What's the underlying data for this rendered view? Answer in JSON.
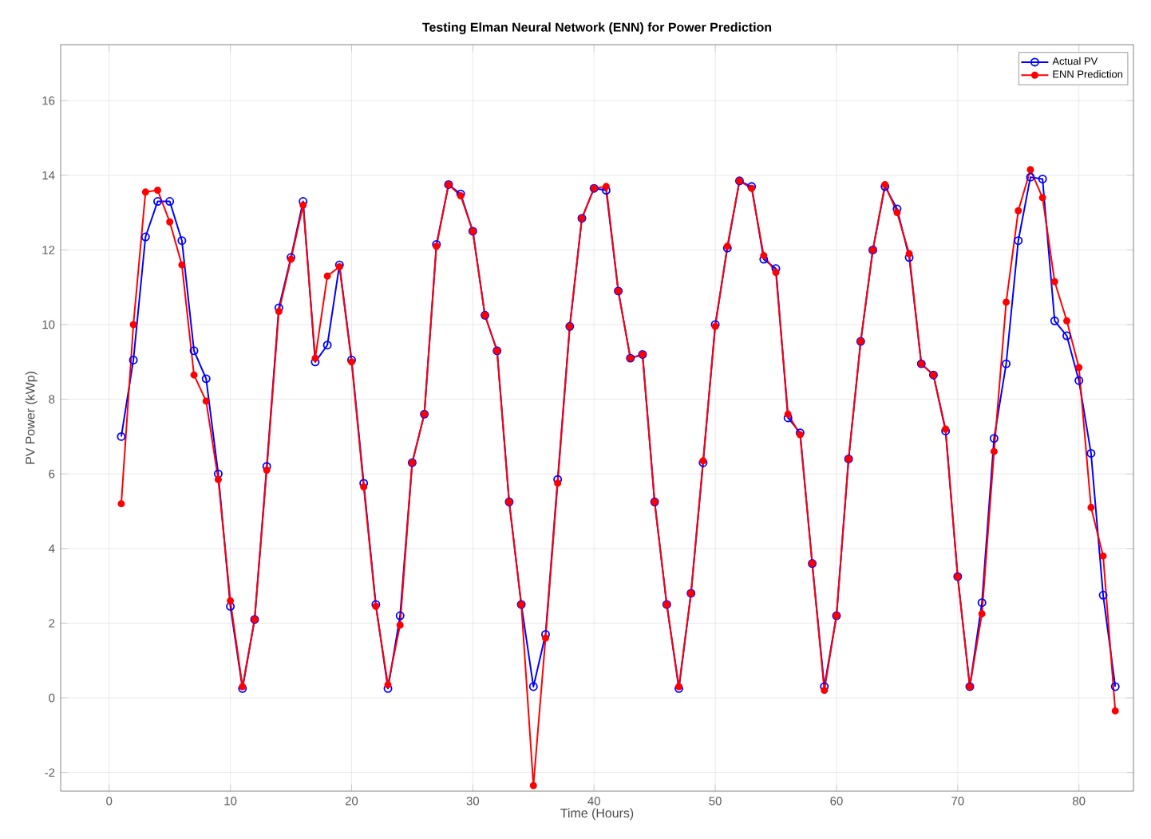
{
  "chart_data": {
    "type": "line",
    "title": "Testing Elman Neural Network (ENN) for Power Prediction",
    "xlabel": "Time (Hours)",
    "ylabel": "PV Power (kWp)",
    "x": [
      1,
      2,
      3,
      4,
      5,
      6,
      7,
      8,
      9,
      10,
      11,
      12,
      13,
      14,
      15,
      16,
      17,
      18,
      19,
      20,
      21,
      22,
      23,
      24,
      25,
      26,
      27,
      28,
      29,
      30,
      31,
      32,
      33,
      34,
      35,
      36,
      37,
      38,
      39,
      40,
      41,
      42,
      43,
      44,
      45,
      46,
      47,
      48,
      49,
      50,
      51,
      52,
      53,
      54,
      55,
      56,
      57,
      58,
      59,
      60,
      61,
      62,
      63,
      64,
      65,
      66,
      67,
      68,
      69,
      70,
      71,
      72,
      73,
      74,
      75,
      76,
      77,
      78,
      79,
      80,
      81,
      82,
      83
    ],
    "series": [
      {
        "name": "Actual PV",
        "color": "#0000ff",
        "marker": "circle",
        "values": [
          7.0,
          9.05,
          12.35,
          13.3,
          13.3,
          12.25,
          9.3,
          8.55,
          6.0,
          2.45,
          0.25,
          2.1,
          6.2,
          10.45,
          11.8,
          13.3,
          9.0,
          9.45,
          11.6,
          9.05,
          5.75,
          2.5,
          0.25,
          2.2,
          6.3,
          7.6,
          12.15,
          13.75,
          13.5,
          12.5,
          10.25,
          9.3,
          5.25,
          2.5,
          0.3,
          1.7,
          5.85,
          9.95,
          12.85,
          13.65,
          13.6,
          10.9,
          9.1,
          9.2,
          5.25,
          2.5,
          0.25,
          2.8,
          6.3,
          10.0,
          12.05,
          13.85,
          13.7,
          11.75,
          11.5,
          7.5,
          7.1,
          3.6,
          0.3,
          2.2,
          6.4,
          9.55,
          12.0,
          13.7,
          13.1,
          11.8,
          8.95,
          8.65,
          7.15,
          3.25,
          0.3,
          2.55,
          6.95,
          8.95,
          12.25,
          13.95,
          13.9,
          10.1,
          9.7,
          8.5,
          6.55,
          2.75,
          0.3
        ]
      },
      {
        "name": "ENN Prediction",
        "color": "#ff0000",
        "marker": "filled circle",
        "values": [
          5.2,
          10.0,
          13.55,
          13.6,
          12.75,
          11.6,
          8.65,
          7.95,
          5.85,
          2.6,
          0.3,
          2.1,
          6.1,
          10.35,
          11.75,
          13.2,
          9.1,
          11.3,
          11.55,
          9.0,
          5.65,
          2.45,
          0.35,
          1.95,
          6.3,
          7.6,
          12.1,
          13.75,
          13.45,
          12.5,
          10.25,
          9.3,
          5.25,
          2.5,
          -2.35,
          1.6,
          5.75,
          9.95,
          12.85,
          13.65,
          13.7,
          10.9,
          9.1,
          9.2,
          5.25,
          2.5,
          0.3,
          2.8,
          6.35,
          9.95,
          12.1,
          13.85,
          13.65,
          11.85,
          11.4,
          7.6,
          7.05,
          3.6,
          0.2,
          2.2,
          6.4,
          9.55,
          12.0,
          13.75,
          13.0,
          11.9,
          8.95,
          8.65,
          7.2,
          3.25,
          0.3,
          2.25,
          6.6,
          10.6,
          13.05,
          14.15,
          13.4,
          11.15,
          10.1,
          8.85,
          5.1,
          3.8,
          -0.35
        ]
      }
    ],
    "xlim": [
      -4,
      84.5
    ],
    "ylim": [
      -2.5,
      17.5
    ],
    "xticks": [
      0,
      10,
      20,
      30,
      40,
      50,
      60,
      70,
      80
    ],
    "yticks": [
      -2,
      0,
      2,
      4,
      6,
      8,
      10,
      12,
      14,
      16
    ],
    "grid": true,
    "legend": "top right",
    "line_style": "solid"
  }
}
